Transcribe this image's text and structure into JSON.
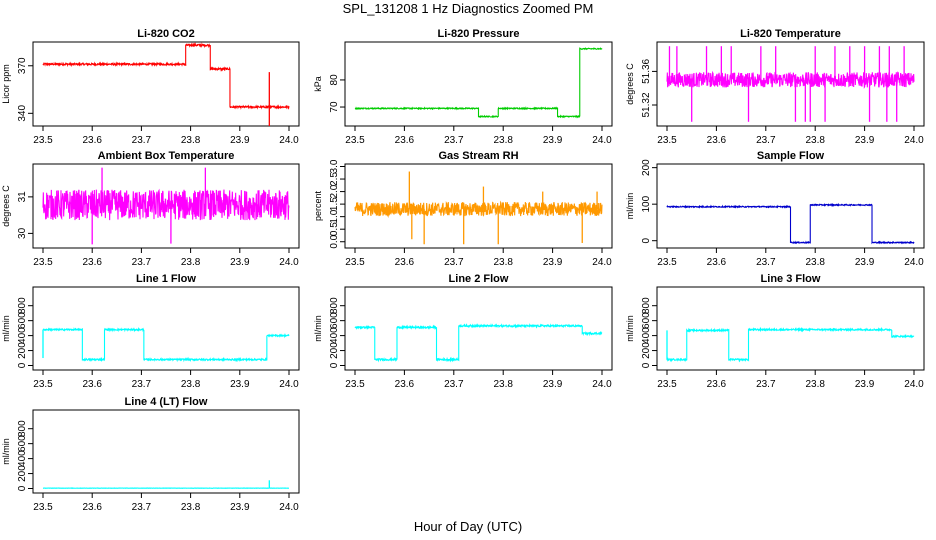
{
  "figure": {
    "title": "SPL_131208  1 Hz Diagnostics Zoomed PM",
    "xlabel": "Hour of Day (UTC)"
  },
  "chart_data": [
    {
      "type": "line",
      "title": "Li-820 CO2",
      "ylabel": "Licor ppm",
      "color": "#ff0000",
      "xlim": [
        23.5,
        24.0
      ],
      "xticks": [
        23.5,
        23.6,
        23.7,
        23.8,
        23.9,
        24.0
      ],
      "ylim": [
        332,
        385
      ],
      "yticks": [
        340,
        370
      ],
      "noise": 0.6,
      "series": [
        {
          "name": "CO2",
          "segments": [
            [
              23.5,
              23.79,
              371
            ],
            [
              23.79,
              23.84,
              383
            ],
            [
              23.84,
              23.88,
              368
            ],
            [
              23.88,
              24.0,
              344
            ]
          ]
        }
      ],
      "spikes": [
        [
          23.79,
          370
        ],
        [
          23.96,
          330
        ],
        [
          23.96,
          366
        ]
      ]
    },
    {
      "type": "line",
      "title": "Li-820 Pressure",
      "ylabel": "kPa",
      "color": "#00cc00",
      "xlim": [
        23.5,
        24.0
      ],
      "xticks": [
        23.5,
        23.6,
        23.7,
        23.8,
        23.9,
        24.0
      ],
      "ylim": [
        63,
        94
      ],
      "yticks": [
        70,
        80
      ],
      "noise": 0.2,
      "series": [
        {
          "name": "Pressure",
          "segments": [
            [
              23.5,
              23.75,
              69.5
            ],
            [
              23.75,
              23.79,
              66.5
            ],
            [
              23.79,
              23.91,
              69.5
            ],
            [
              23.91,
              23.955,
              66.5
            ],
            [
              23.955,
              24.0,
              91.5
            ]
          ]
        }
      ],
      "spikes": []
    },
    {
      "type": "line",
      "title": "Li-820 Temperature",
      "ylabel": "degrees C",
      "color": "#ff00ff",
      "xlim": [
        23.5,
        24.0
      ],
      "xticks": [
        23.5,
        23.6,
        23.7,
        23.8,
        23.9,
        24.0
      ],
      "ylim": [
        51.295,
        51.395
      ],
      "yticks": [
        51.32,
        51.36
      ],
      "noise": 0.009,
      "series": [
        {
          "name": "Temperature",
          "segments": [
            [
              23.5,
              24.0,
              51.35
            ]
          ]
        }
      ],
      "spikes": [
        [
          23.505,
          51.39
        ],
        [
          23.52,
          51.39
        ],
        [
          23.55,
          51.3
        ],
        [
          23.58,
          51.39
        ],
        [
          23.61,
          51.39
        ],
        [
          23.63,
          51.39
        ],
        [
          23.665,
          51.3
        ],
        [
          23.69,
          51.39
        ],
        [
          23.72,
          51.39
        ],
        [
          23.76,
          51.3
        ],
        [
          23.78,
          51.3
        ],
        [
          23.79,
          51.3
        ],
        [
          23.8,
          51.39
        ],
        [
          23.82,
          51.3
        ],
        [
          23.84,
          51.39
        ],
        [
          23.87,
          51.39
        ],
        [
          23.9,
          51.39
        ],
        [
          23.91,
          51.3
        ],
        [
          23.93,
          51.39
        ],
        [
          23.945,
          51.3
        ],
        [
          23.95,
          51.39
        ],
        [
          23.965,
          51.3
        ],
        [
          23.98,
          51.39
        ]
      ]
    },
    {
      "type": "line",
      "title": "Ambient Box Temperature",
      "ylabel": "degrees C",
      "color": "#ff00ff",
      "xlim": [
        23.5,
        24.0
      ],
      "xticks": [
        23.5,
        23.6,
        23.7,
        23.8,
        23.9,
        24.0
      ],
      "ylim": [
        29.6,
        31.9
      ],
      "yticks": [
        30.0,
        31.0
      ],
      "noise": 0.42,
      "series": [
        {
          "name": "Box Temperature",
          "segments": [
            [
              23.5,
              24.0,
              30.78
            ]
          ]
        }
      ],
      "spikes": [
        [
          23.6,
          29.7
        ],
        [
          23.62,
          31.8
        ],
        [
          23.76,
          29.72
        ],
        [
          23.83,
          31.8
        ]
      ]
    },
    {
      "type": "line",
      "title": "Gas Stream RH",
      "ylabel": "percent",
      "color": "#ff9900",
      "xlim": [
        23.5,
        24.0
      ],
      "xticks": [
        23.5,
        23.6,
        23.7,
        23.8,
        23.9,
        24.0
      ],
      "ylim": [
        -0.25,
        3.1
      ],
      "yticks": [
        0.0,
        0.5,
        1.0,
        1.5,
        2.0,
        2.5,
        3.0
      ],
      "noise": 0.28,
      "series": [
        {
          "name": "RH",
          "segments": [
            [
              23.5,
              24.0,
              1.3
            ]
          ]
        }
      ],
      "spikes": [
        [
          23.61,
          2.8
        ],
        [
          23.615,
          0.1
        ],
        [
          23.64,
          -0.1
        ],
        [
          23.72,
          -0.1
        ],
        [
          23.76,
          2.2
        ],
        [
          23.79,
          -0.1
        ],
        [
          23.88,
          2.0
        ],
        [
          23.96,
          -0.05
        ],
        [
          23.99,
          2.0
        ]
      ]
    },
    {
      "type": "line",
      "title": "Sample Flow",
      "ylabel": "ml/min",
      "color": "#0000cc",
      "xlim": [
        23.5,
        24.0
      ],
      "xticks": [
        23.5,
        23.6,
        23.7,
        23.8,
        23.9,
        24.0
      ],
      "ylim": [
        -20,
        210
      ],
      "yticks": [
        0,
        100,
        200
      ],
      "noise": 1.5,
      "series": [
        {
          "name": "Sample Flow",
          "segments": [
            [
              23.5,
              23.75,
              93
            ],
            [
              23.75,
              23.79,
              -5
            ],
            [
              23.79,
              23.915,
              98
            ],
            [
              23.915,
              24.0,
              -5
            ]
          ]
        }
      ],
      "spikes": []
    },
    {
      "type": "line",
      "title": "Line 1 Flow",
      "ylabel": "ml/min",
      "color": "#00ffff",
      "xlim": [
        23.5,
        24.0
      ],
      "xticks": [
        23.5,
        23.6,
        23.7,
        23.8,
        23.9,
        24.0
      ],
      "ylim": [
        -60,
        1050
      ],
      "yticks": [
        0,
        200,
        400,
        600,
        800
      ],
      "noise": 10,
      "series": [
        {
          "name": "Line 1 Flow",
          "segments": [
            [
              23.5,
              23.58,
              480
            ],
            [
              23.58,
              23.625,
              80
            ],
            [
              23.625,
              23.705,
              480
            ],
            [
              23.705,
              23.955,
              80
            ],
            [
              23.955,
              24.0,
              400
            ]
          ]
        }
      ],
      "spikes": [
        [
          23.5,
          100
        ]
      ]
    },
    {
      "type": "line",
      "title": "Line 2 Flow",
      "ylabel": "ml/min",
      "color": "#00ffff",
      "xlim": [
        23.5,
        24.0
      ],
      "xticks": [
        23.5,
        23.6,
        23.7,
        23.8,
        23.9,
        24.0
      ],
      "ylim": [
        -60,
        1050
      ],
      "yticks": [
        0,
        200,
        400,
        600,
        800
      ],
      "noise": 12,
      "series": [
        {
          "name": "Line 2 Flow",
          "segments": [
            [
              23.5,
              23.54,
              510
            ],
            [
              23.54,
              23.585,
              80
            ],
            [
              23.585,
              23.665,
              510
            ],
            [
              23.665,
              23.71,
              80
            ],
            [
              23.71,
              23.96,
              530
            ],
            [
              23.96,
              24.0,
              430
            ]
          ]
        }
      ],
      "spikes": []
    },
    {
      "type": "line",
      "title": "Line 3 Flow",
      "ylabel": "ml/min",
      "color": "#00ffff",
      "xlim": [
        23.5,
        24.0
      ],
      "xticks": [
        23.5,
        23.6,
        23.7,
        23.8,
        23.9,
        24.0
      ],
      "ylim": [
        -60,
        1050
      ],
      "yticks": [
        0,
        200,
        400,
        600,
        800
      ],
      "noise": 10,
      "series": [
        {
          "name": "Line 3 Flow",
          "segments": [
            [
              23.5,
              23.54,
              80
            ],
            [
              23.54,
              23.625,
              470
            ],
            [
              23.625,
              23.665,
              80
            ],
            [
              23.665,
              23.955,
              480
            ],
            [
              23.955,
              24.0,
              390
            ]
          ]
        }
      ],
      "spikes": [
        [
          23.5,
          470
        ]
      ]
    },
    {
      "type": "line",
      "title": "Line 4 (LT) Flow",
      "ylabel": "ml/min",
      "color": "#00ffff",
      "xlim": [
        23.5,
        24.0
      ],
      "xticks": [
        23.5,
        23.6,
        23.7,
        23.8,
        23.9,
        24.0
      ],
      "ylim": [
        -60,
        1050
      ],
      "yticks": [
        0,
        200,
        400,
        600,
        800
      ],
      "noise": 2,
      "series": [
        {
          "name": "Line 4 Flow",
          "segments": [
            [
              23.5,
              24.0,
              5
            ]
          ]
        }
      ],
      "spikes": [
        [
          23.96,
          110
        ]
      ]
    }
  ]
}
